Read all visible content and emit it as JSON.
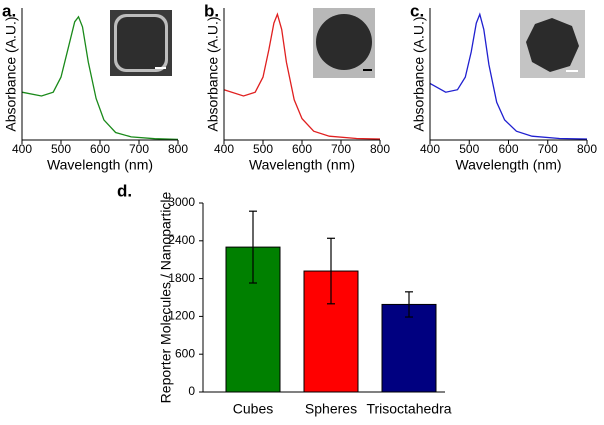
{
  "chart_data": [
    {
      "type": "line",
      "label": "a.",
      "xlabel": "Wavelength (nm)",
      "ylabel": "Absorbance (A.U.)",
      "x": [
        400,
        450,
        480,
        500,
        520,
        535,
        545,
        555,
        570,
        590,
        610,
        640,
        680,
        740,
        800
      ],
      "values": [
        0.38,
        0.35,
        0.38,
        0.5,
        0.75,
        0.94,
        0.98,
        0.9,
        0.62,
        0.33,
        0.16,
        0.06,
        0.025,
        0.01,
        0.005
      ],
      "color": "#1a8a1a",
      "xlim": [
        400,
        800
      ],
      "ylim": [
        0,
        1.05
      ],
      "xticks": [
        400,
        500,
        600,
        700,
        800
      ]
    },
    {
      "type": "line",
      "label": "b.",
      "xlabel": "Wavelength (nm)",
      "ylabel": "Absorbance (A.U.)",
      "x": [
        400,
        450,
        480,
        500,
        515,
        528,
        537,
        548,
        560,
        580,
        600,
        630,
        670,
        740,
        800
      ],
      "values": [
        0.4,
        0.35,
        0.38,
        0.5,
        0.72,
        0.93,
        1.0,
        0.88,
        0.62,
        0.32,
        0.17,
        0.07,
        0.03,
        0.012,
        0.008
      ],
      "color": "#e02020",
      "xlim": [
        400,
        800
      ],
      "ylim": [
        0,
        1.05
      ],
      "xticks": [
        400,
        500,
        600,
        700,
        800
      ]
    },
    {
      "type": "line",
      "label": "c.",
      "xlabel": "Wavelength (nm)",
      "ylabel": "Absorbance (A.U.)",
      "x": [
        400,
        440,
        470,
        490,
        505,
        518,
        527,
        537,
        550,
        570,
        590,
        620,
        660,
        730,
        800
      ],
      "values": [
        0.45,
        0.38,
        0.4,
        0.5,
        0.7,
        0.93,
        1.0,
        0.88,
        0.6,
        0.3,
        0.16,
        0.07,
        0.03,
        0.012,
        0.008
      ],
      "color": "#2020d0",
      "xlim": [
        400,
        800
      ],
      "ylim": [
        0,
        1.05
      ],
      "xticks": [
        400,
        500,
        600,
        700,
        800
      ]
    },
    {
      "type": "bar",
      "label": "d.",
      "ylabel": "Reporter Molecules / Nanoparticle",
      "categories": [
        "Cubes",
        "Spheres",
        "Trisoctahedra"
      ],
      "values": [
        2300,
        1920,
        1390
      ],
      "errors": [
        570,
        520,
        200
      ],
      "colors": [
        "#008000",
        "#ff0000",
        "#000080"
      ],
      "ylim": [
        0,
        3000
      ],
      "yticks": [
        0,
        600,
        1200,
        1800,
        2400,
        3000
      ]
    }
  ]
}
